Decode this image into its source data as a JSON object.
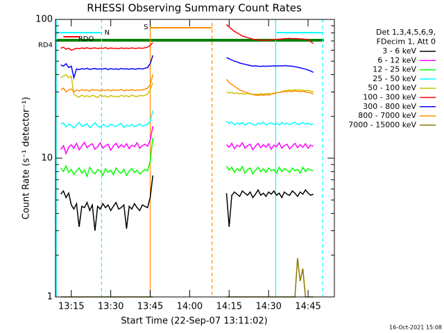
{
  "chart_data": {
    "type": "line",
    "title": "RHESSI Observing Summary Count Rates",
    "x_label": "Start Time (22-Sep-07 13:11:02)",
    "y_label": "Count Rate (s⁻¹ detector⁻¹)",
    "footer": "16-Oct-2021 15:08",
    "legend_header": [
      "Det 1,3,4,5,6,9,",
      "FDecim 1, Att 0"
    ],
    "ylog": true,
    "xlim": [
      789,
      895
    ],
    "ylim": [
      1,
      100
    ],
    "yticks": [
      1,
      10,
      100
    ],
    "yminorticks": [
      2,
      3,
      4,
      5,
      6,
      7,
      8,
      9,
      20,
      30,
      40,
      50,
      60,
      70,
      80,
      90
    ],
    "xticks": [
      {
        "value": 795,
        "label": "13:15"
      },
      {
        "value": 810,
        "label": "13:30"
      },
      {
        "value": 825,
        "label": "13:45"
      },
      {
        "value": 840,
        "label": "14:00"
      },
      {
        "value": 855,
        "label": "14:15"
      },
      {
        "value": 870,
        "label": "14:30"
      },
      {
        "value": 885,
        "label": "14:45"
      }
    ],
    "x": [
      791,
      792,
      793,
      794,
      795,
      796,
      797,
      798,
      799,
      800,
      801,
      802,
      803,
      804,
      805,
      806,
      807,
      808,
      809,
      810,
      811,
      812,
      813,
      814,
      815,
      816,
      817,
      818,
      819,
      820,
      821,
      822,
      823,
      824,
      825,
      826,
      840,
      854,
      855,
      856,
      857,
      858,
      859,
      860,
      861,
      862,
      863,
      864,
      865,
      866,
      867,
      868,
      869,
      870,
      871,
      872,
      873,
      874,
      875,
      876,
      877,
      878,
      879,
      880,
      881,
      882,
      883,
      884,
      885,
      886,
      887
    ],
    "series": [
      {
        "name": "3 - 6 keV",
        "color": "#000000",
        "values": [
          5.5,
          5.8,
          5.2,
          5.6,
          4.6,
          4.3,
          4.7,
          3.2,
          4.5,
          4.4,
          4.8,
          4.2,
          4.6,
          3.0,
          4.5,
          4.3,
          4.7,
          4.4,
          4.6,
          4.2,
          4.5,
          4.8,
          4.3,
          4.4,
          4.6,
          3.1,
          4.5,
          4.3,
          4.7,
          4.4,
          4.2,
          4.6,
          4.5,
          4.4,
          5.2,
          7.5,
          null,
          5.6,
          3.2,
          5.4,
          5.7,
          5.5,
          5.3,
          5.8,
          5.6,
          5.4,
          5.7,
          5.2,
          5.5,
          5.9,
          5.4,
          5.6,
          5.3,
          5.7,
          5.5,
          5.8,
          5.4,
          5.6,
          5.2,
          5.7,
          5.5,
          5.4,
          5.8,
          5.6,
          5.3,
          5.7,
          5.5,
          5.9,
          5.6,
          5.4,
          5.5
        ]
      },
      {
        "name": "6 - 12 keV",
        "color": "#ff00ff",
        "values": [
          11.5,
          12.3,
          10.8,
          12.0,
          12.5,
          11.8,
          12.8,
          11.5,
          12.2,
          13.0,
          11.9,
          12.4,
          12.7,
          11.6,
          12.1,
          12.9,
          11.8,
          12.3,
          12.6,
          11.4,
          12.2,
          12.8,
          11.9,
          12.5,
          12.0,
          12.7,
          11.7,
          12.4,
          12.1,
          12.9,
          11.8,
          12.3,
          12.6,
          12.2,
          13.5,
          17,
          null,
          12.5,
          12.0,
          12.8,
          11.7,
          12.4,
          12.1,
          12.9,
          11.8,
          12.3,
          12.6,
          11.5,
          12.2,
          12.8,
          11.9,
          12.5,
          12.0,
          12.7,
          11.6,
          12.4,
          12.1,
          12.9,
          11.8,
          12.3,
          12.6,
          11.7,
          12.2,
          12.8,
          11.9,
          12.5,
          12.0,
          12.7,
          11.8,
          12.4,
          12.2
        ]
      },
      {
        "name": "12 - 25 keV",
        "color": "#00ff00",
        "values": [
          8.5,
          8.0,
          8.8,
          7.9,
          8.3,
          7.6,
          8.1,
          8.5,
          7.8,
          8.2,
          7.4,
          8.6,
          8.0,
          7.7,
          8.3,
          8.1,
          7.5,
          8.4,
          7.9,
          8.2,
          7.6,
          8.5,
          8.0,
          7.8,
          8.3,
          7.5,
          8.1,
          8.4,
          7.9,
          8.2,
          7.7,
          8.0,
          8.3,
          8.1,
          9.5,
          14,
          null,
          8.8,
          8.2,
          8.6,
          7.9,
          8.4,
          8.1,
          8.7,
          7.8,
          8.3,
          8.5,
          7.7,
          8.2,
          8.6,
          8.0,
          8.4,
          7.9,
          8.5,
          8.1,
          8.3,
          7.8,
          8.6,
          8.0,
          8.4,
          8.2,
          7.9,
          8.5,
          8.1,
          8.3,
          7.8,
          8.6,
          8.0,
          8.4,
          8.2,
          8.1
        ]
      },
      {
        "name": "25 - 50 keV",
        "color": "#00ffff",
        "values": [
          17.5,
          18.0,
          16.8,
          17.6,
          17.2,
          16.5,
          17.4,
          18.1,
          16.9,
          17.3,
          17.7,
          16.6,
          17.2,
          18.0,
          17.0,
          16.7,
          17.5,
          17.1,
          16.8,
          17.6,
          17.2,
          16.9,
          17.4,
          17.8,
          16.6,
          17.3,
          17.0,
          17.5,
          16.8,
          17.2,
          17.7,
          17.0,
          17.3,
          17.5,
          18.5,
          22,
          null,
          18.5,
          17.8,
          18.2,
          17.4,
          17.9,
          17.6,
          18.1,
          17.3,
          17.8,
          18.0,
          17.5,
          17.2,
          17.9,
          17.6,
          18.2,
          17.4,
          17.7,
          18.0,
          17.5,
          17.8,
          17.3,
          18.1,
          17.6,
          17.9,
          17.4,
          17.8,
          18.2,
          17.5,
          17.7,
          18.0,
          17.6,
          17.9,
          17.4,
          17.7
        ]
      },
      {
        "name": "50 - 100 keV",
        "color": "#d2c000",
        "values": [
          38,
          39,
          40,
          38,
          39,
          29,
          28,
          27.5,
          28.5,
          27.8,
          28.2,
          27.6,
          28.4,
          28.0,
          27.3,
          28.6,
          27.9,
          28.1,
          27.5,
          28.3,
          27.8,
          28.0,
          27.6,
          28.4,
          27.9,
          28.2,
          27.7,
          28.5,
          28.0,
          27.8,
          28.3,
          28.1,
          28.4,
          29,
          31,
          35,
          null,
          30,
          29.5,
          29.8,
          29.2,
          29.6,
          29.0,
          29.4,
          28.9,
          29.3,
          29.1,
          28.7,
          29.0,
          28.8,
          29.2,
          28.9,
          29.1,
          29.3,
          29.0,
          29.4,
          29.6,
          29.8,
          30.2,
          30.5,
          30.8,
          31.0,
          30.7,
          31.2,
          30.9,
          31.1,
          30.8,
          30.6,
          30.9,
          30.4,
          30.2
        ]
      },
      {
        "name": "100 - 300 keV",
        "color": "#ff0000",
        "values": [
          62,
          63,
          61,
          62,
          60,
          61,
          62,
          61.5,
          62.3,
          61.8,
          62.5,
          61.6,
          62.0,
          62.4,
          61.7,
          62.1,
          61.9,
          62.6,
          61.5,
          62.2,
          61.8,
          62.0,
          61.6,
          62.3,
          61.9,
          62.1,
          61.7,
          62.4,
          61.8,
          62.0,
          62.3,
          61.9,
          62.5,
          63,
          65,
          68,
          null,
          92,
          88,
          85,
          82,
          80,
          78,
          76,
          75,
          74,
          73,
          72,
          71.5,
          71,
          70.8,
          71,
          70.6,
          70.9,
          71.2,
          71.5,
          71.8,
          72,
          72.3,
          72.6,
          72.8,
          73,
          72.7,
          72.9,
          72.6,
          72.4,
          72.2,
          71.9,
          71.5,
          69,
          67
        ]
      },
      {
        "name": "300 - 800 keV",
        "color": "#0000ff",
        "values": [
          47,
          46,
          48,
          45,
          46,
          38,
          44,
          43.5,
          44.2,
          43.8,
          44.5,
          43.6,
          44.0,
          44.3,
          43.7,
          44.1,
          43.9,
          44.4,
          43.5,
          44.2,
          43.8,
          44.0,
          43.6,
          44.3,
          43.9,
          44.1,
          43.7,
          44.2,
          43.8,
          44.0,
          44.3,
          43.9,
          44.5,
          45,
          48,
          55,
          null,
          53,
          52,
          51,
          50,
          49.5,
          48.5,
          48,
          47.5,
          47,
          46.5,
          46,
          46.3,
          46,
          45.8,
          46.1,
          45.9,
          46.2,
          46.0,
          46.3,
          46.1,
          46.4,
          46.2,
          46.5,
          46.3,
          46.1,
          46.0,
          45.6,
          45.2,
          44.8,
          44.3,
          43.8,
          43.2,
          42.5,
          41.5
        ]
      },
      {
        "name": "800 - 7000 keV",
        "color": "#ff8c00",
        "values": [
          31,
          32,
          30,
          31,
          31.5,
          30,
          31,
          30.5,
          31.2,
          30.8,
          31,
          30.4,
          31.3,
          30.9,
          31.1,
          30.6,
          31.0,
          30.7,
          31.2,
          30.5,
          31.1,
          30.8,
          30.9,
          31.3,
          30.6,
          31.0,
          30.8,
          31.2,
          30.7,
          31.0,
          30.9,
          31.1,
          31.4,
          32,
          34,
          40,
          null,
          37,
          35,
          34,
          33,
          32,
          31,
          30.5,
          30,
          29.5,
          29,
          28.8,
          28.5,
          28.3,
          28.6,
          28.4,
          28.7,
          28.5,
          28.9,
          29.2,
          29.5,
          29.8,
          30,
          30.3,
          30.1,
          30.4,
          30.2,
          30.5,
          30.3,
          30.1,
          30.4,
          30.0,
          29.8,
          29.5,
          29
        ]
      },
      {
        "name": "7000 - 15000 keV",
        "color": "#8b7500",
        "values": [
          1,
          1,
          1,
          1,
          1,
          1,
          1,
          1,
          1,
          1,
          1,
          1,
          1,
          1,
          1,
          1,
          1,
          1,
          1,
          1,
          1,
          1,
          1,
          1,
          1,
          1,
          1,
          1,
          1,
          1,
          1,
          1,
          1,
          1,
          1,
          1,
          null,
          1,
          1,
          1,
          1,
          1,
          1,
          1,
          1,
          1,
          1,
          1,
          1,
          1,
          1,
          1,
          1,
          1,
          1,
          1,
          1,
          1,
          1,
          1,
          1,
          1,
          1,
          1,
          1.9,
          1.3,
          1.6,
          1,
          1,
          1,
          1
        ]
      }
    ],
    "flags": [
      {
        "label": "N",
        "color": "#00ffff",
        "ranges": [
          [
            789,
            806.5
          ],
          [
            873,
            890.5
          ]
        ]
      },
      {
        "label": "S",
        "color": "#ff8c00",
        "ranges": [
          [
            825,
            848.5
          ]
        ]
      },
      {
        "label": "RD4",
        "color": "#008000",
        "ranges": [
          [
            789,
            891
          ]
        ]
      },
      {
        "label": "RDO",
        "color": "#ff0000",
        "ranges": [
          [
            792,
            798
          ]
        ]
      }
    ],
    "markers": [
      {
        "x": 789.3,
        "color": "#00ffff",
        "dashed": false
      },
      {
        "x": 806.5,
        "color": "#00ffff",
        "dashed": true
      },
      {
        "x": 825,
        "color": "#ff8c00",
        "dashed": false
      },
      {
        "x": 848.5,
        "color": "#ff8c00",
        "dashed": true
      },
      {
        "x": 872.7,
        "color": "#00ffff",
        "dashed": false
      },
      {
        "x": 890.5,
        "color": "#00ffff",
        "dashed": true
      }
    ]
  }
}
